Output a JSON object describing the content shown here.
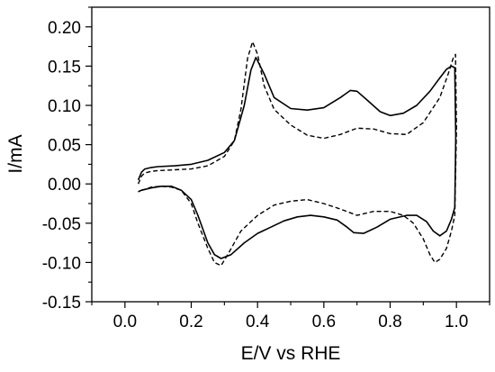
{
  "chart_data": {
    "type": "line",
    "xlabel": "E/V vs RHE",
    "ylabel": "I/mA",
    "xlim": [
      -0.1,
      1.1
    ],
    "ylim": [
      -0.15,
      0.225
    ],
    "xticks": [
      0.0,
      0.2,
      0.4,
      0.6,
      0.8,
      1.0
    ],
    "xtick_labels": [
      "0.0",
      "0.2",
      "0.4",
      "0.6",
      "0.8",
      "1.0"
    ],
    "yticks": [
      -0.15,
      -0.1,
      -0.05,
      0.0,
      0.05,
      0.1,
      0.15,
      0.2
    ],
    "ytick_labels": [
      "-0.15",
      "-0.10",
      "-0.05",
      "0.00",
      "0.05",
      "0.10",
      "0.15",
      "0.20"
    ],
    "grid": false,
    "legend": "none",
    "box": true,
    "series": [
      {
        "style": "solid",
        "color": "#000000",
        "x": [
          0.04,
          0.05,
          0.06,
          0.08,
          0.1,
          0.15,
          0.2,
          0.25,
          0.3,
          0.33,
          0.36,
          0.38,
          0.395,
          0.42,
          0.45,
          0.5,
          0.55,
          0.6,
          0.65,
          0.68,
          0.7,
          0.73,
          0.77,
          0.8,
          0.84,
          0.88,
          0.92,
          0.95,
          0.97,
          0.985,
          0.995,
          0.998,
          0.995,
          0.985,
          0.97,
          0.95,
          0.93,
          0.91,
          0.88,
          0.85,
          0.8,
          0.76,
          0.72,
          0.69,
          0.67,
          0.64,
          0.6,
          0.56,
          0.52,
          0.48,
          0.44,
          0.4,
          0.36,
          0.32,
          0.29,
          0.27,
          0.25,
          0.22,
          0.2,
          0.17,
          0.14,
          0.11,
          0.08,
          0.06,
          0.05,
          0.045,
          0.04
        ],
        "y": [
          0.005,
          0.015,
          0.019,
          0.021,
          0.022,
          0.023,
          0.025,
          0.03,
          0.04,
          0.055,
          0.1,
          0.145,
          0.161,
          0.14,
          0.11,
          0.096,
          0.094,
          0.097,
          0.11,
          0.119,
          0.118,
          0.107,
          0.092,
          0.087,
          0.09,
          0.1,
          0.118,
          0.135,
          0.146,
          0.15,
          0.148,
          0.06,
          -0.03,
          -0.045,
          -0.06,
          -0.066,
          -0.06,
          -0.048,
          -0.04,
          -0.04,
          -0.045,
          -0.055,
          -0.063,
          -0.062,
          -0.055,
          -0.046,
          -0.042,
          -0.04,
          -0.042,
          -0.047,
          -0.055,
          -0.063,
          -0.075,
          -0.09,
          -0.095,
          -0.09,
          -0.075,
          -0.04,
          -0.02,
          -0.008,
          -0.003,
          -0.003,
          -0.005,
          -0.007,
          -0.008,
          -0.009,
          -0.01
        ]
      },
      {
        "style": "dashed",
        "color": "#000000",
        "x": [
          0.04,
          0.05,
          0.06,
          0.08,
          0.1,
          0.15,
          0.2,
          0.25,
          0.3,
          0.33,
          0.35,
          0.37,
          0.385,
          0.4,
          0.42,
          0.45,
          0.5,
          0.55,
          0.6,
          0.65,
          0.7,
          0.75,
          0.8,
          0.85,
          0.9,
          0.95,
          0.975,
          0.99,
          0.997,
          1.0,
          0.995,
          0.985,
          0.97,
          0.95,
          0.935,
          0.92,
          0.9,
          0.87,
          0.84,
          0.8,
          0.75,
          0.7,
          0.65,
          0.6,
          0.55,
          0.5,
          0.45,
          0.4,
          0.35,
          0.31,
          0.29,
          0.27,
          0.25,
          0.22,
          0.2,
          0.17,
          0.14,
          0.11,
          0.08,
          0.06,
          0.05,
          0.045,
          0.04
        ],
        "y": [
          0.0,
          0.01,
          0.014,
          0.016,
          0.017,
          0.018,
          0.019,
          0.023,
          0.035,
          0.055,
          0.095,
          0.16,
          0.181,
          0.165,
          0.125,
          0.095,
          0.075,
          0.062,
          0.058,
          0.063,
          0.071,
          0.07,
          0.064,
          0.063,
          0.078,
          0.11,
          0.14,
          0.16,
          0.165,
          0.07,
          -0.04,
          -0.06,
          -0.082,
          -0.096,
          -0.1,
          -0.09,
          -0.07,
          -0.05,
          -0.04,
          -0.035,
          -0.035,
          -0.04,
          -0.032,
          -0.025,
          -0.02,
          -0.022,
          -0.027,
          -0.04,
          -0.06,
          -0.09,
          -0.104,
          -0.1,
          -0.082,
          -0.05,
          -0.025,
          -0.008,
          -0.004,
          -0.003,
          -0.004,
          -0.007,
          -0.008,
          -0.009,
          -0.01
        ]
      }
    ]
  }
}
